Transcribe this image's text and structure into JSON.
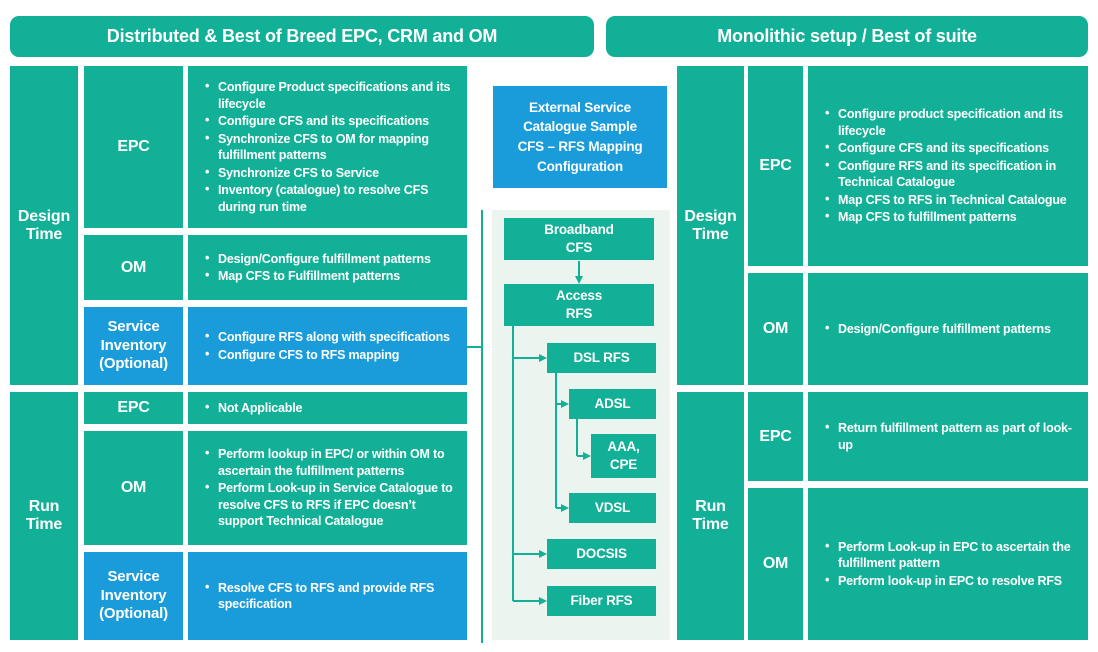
{
  "colors": {
    "teal": "#12B097",
    "blue": "#1B9CDA",
    "panel_bg": "#ECF4F0",
    "text": "#FFFFFF"
  },
  "headers": {
    "left": "Distributed & Best of Breed EPC, CRM and OM",
    "right": "Monolithic setup / Best of suite"
  },
  "left": {
    "design_label": "Design Time",
    "run_label": "Run Time",
    "design_rows": [
      {
        "label": "EPC",
        "bullets": [
          "Configure Product specifications and its lifecycle",
          "Configure CFS and its specifications",
          "Synchronize CFS to OM for mapping fulfillment patterns",
          "Synchronize CFS to Service",
          "Inventory (catalogue) to resolve CFS during run time"
        ]
      },
      {
        "label": "OM",
        "bullets": [
          "Design/Configure fulfillment patterns",
          "Map CFS to Fulfillment patterns"
        ]
      },
      {
        "label": "Service Inventory (Optional)",
        "bullets": [
          "Configure RFS along with specifications",
          "Configure CFS to RFS mapping"
        ]
      }
    ],
    "run_rows": [
      {
        "label": "EPC",
        "bullets": [
          "Not Applicable"
        ]
      },
      {
        "label": "OM",
        "bullets": [
          "Perform lookup in EPC/ or within OM to ascertain the fulfillment patterns",
          "Perform Look-up in Service Catalogue to resolve CFS to RFS if EPC doesn’t support Technical Catalogue"
        ]
      },
      {
        "label": "Service Inventory (Optional)",
        "bullets": [
          "Resolve CFS to RFS and provide RFS specification"
        ]
      }
    ]
  },
  "center": {
    "callout": "External Service\nCatalogue Sample\nCFS – RFS Mapping\nConfiguration",
    "nodes": {
      "broadband": "Broadband\nCFS",
      "access": "Access\nRFS",
      "dsl": "DSL RFS",
      "adsl": "ADSL",
      "aaa": "AAA,\nCPE",
      "vdsl": "VDSL",
      "docsis": "DOCSIS",
      "fiber": "Fiber RFS"
    }
  },
  "right": {
    "design_label": "Design Time",
    "run_label": "Run Time",
    "design_rows": [
      {
        "label": "EPC",
        "bullets": [
          "Configure product specification and its lifecycle",
          "Configure CFS and its specifications",
          "Configure RFS and its specification in Technical Catalogue",
          "Map CFS to RFS in Technical Catalogue",
          "Map CFS to fulfillment patterns"
        ]
      },
      {
        "label": "OM",
        "bullets": [
          "Design/Configure fulfillment patterns"
        ]
      }
    ],
    "run_rows": [
      {
        "label": "EPC",
        "bullets": [
          "Return fulfillment pattern as part of look-up"
        ]
      },
      {
        "label": "OM",
        "bullets": [
          "Perform Look-up in EPC to ascertain the fulfillment pattern",
          "Perform look-up in EPC to resolve RFS"
        ]
      }
    ]
  }
}
